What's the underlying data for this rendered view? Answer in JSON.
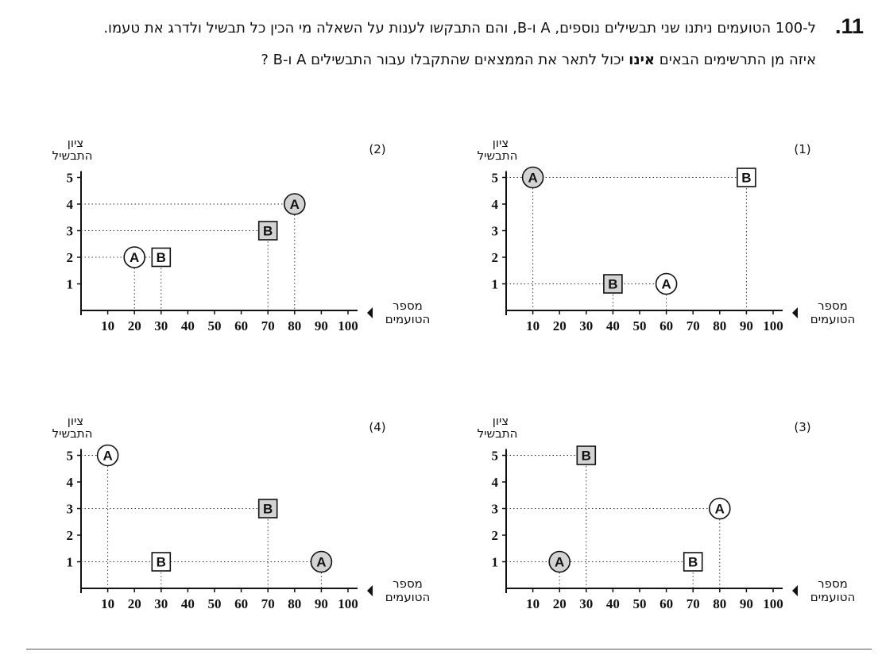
{
  "question": {
    "number": ".11",
    "line1": "ל-100 הטועמים ניתנו שני תבשילים נוספים, A ו-B, והם התבקשו לענות על השאלה מי הכין כל תבשיל ולדרג את טעמו.",
    "line2_before": "איזה מן התרשימים הבאים ",
    "line2_bold": "אינו",
    "line2_after": " יכול לתאר את הממצאים שהתקבלו עבור התבשילים A ו-B ?"
  },
  "axis_text": {
    "y_label_line1": "ציון",
    "y_label_line2": "התבשיל",
    "x_label_line1": "מספר",
    "x_label_line2": "הטועמים"
  },
  "colors": {
    "filled": "#d3d3d3",
    "empty": "#ffffff",
    "stroke": "#111111"
  },
  "chart_data": [
    {
      "type": "scatter",
      "label": "(1)",
      "x_ticks": [
        10,
        20,
        30,
        40,
        50,
        60,
        70,
        80,
        90,
        100
      ],
      "y_ticks": [
        1,
        2,
        3,
        4,
        5
      ],
      "xlim": [
        0,
        100
      ],
      "ylim": [
        0,
        5
      ],
      "points": [
        {
          "name": "A",
          "shape": "circle",
          "fill": "filled",
          "x": 10,
          "y": 5
        },
        {
          "name": "B",
          "shape": "square",
          "fill": "empty",
          "x": 90,
          "y": 5
        },
        {
          "name": "B",
          "shape": "square",
          "fill": "filled",
          "x": 40,
          "y": 1
        },
        {
          "name": "A",
          "shape": "circle",
          "fill": "empty",
          "x": 60,
          "y": 1
        }
      ]
    },
    {
      "type": "scatter",
      "label": "(2)",
      "x_ticks": [
        10,
        20,
        30,
        40,
        50,
        60,
        70,
        80,
        90,
        100
      ],
      "y_ticks": [
        1,
        2,
        3,
        4,
        5
      ],
      "xlim": [
        0,
        100
      ],
      "ylim": [
        0,
        5
      ],
      "points": [
        {
          "name": "A",
          "shape": "circle",
          "fill": "filled",
          "x": 80,
          "y": 4
        },
        {
          "name": "B",
          "shape": "square",
          "fill": "filled",
          "x": 70,
          "y": 3
        },
        {
          "name": "A",
          "shape": "circle",
          "fill": "empty",
          "x": 20,
          "y": 2
        },
        {
          "name": "B",
          "shape": "square",
          "fill": "empty",
          "x": 30,
          "y": 2
        }
      ]
    },
    {
      "type": "scatter",
      "label": "(3)",
      "x_ticks": [
        10,
        20,
        30,
        40,
        50,
        60,
        70,
        80,
        90,
        100
      ],
      "y_ticks": [
        1,
        2,
        3,
        4,
        5
      ],
      "xlim": [
        0,
        100
      ],
      "ylim": [
        0,
        5
      ],
      "points": [
        {
          "name": "B",
          "shape": "square",
          "fill": "filled",
          "x": 30,
          "y": 5
        },
        {
          "name": "A",
          "shape": "circle",
          "fill": "empty",
          "x": 80,
          "y": 3
        },
        {
          "name": "A",
          "shape": "circle",
          "fill": "filled",
          "x": 20,
          "y": 1
        },
        {
          "name": "B",
          "shape": "square",
          "fill": "empty",
          "x": 70,
          "y": 1
        }
      ]
    },
    {
      "type": "scatter",
      "label": "(4)",
      "x_ticks": [
        10,
        20,
        30,
        40,
        50,
        60,
        70,
        80,
        90,
        100
      ],
      "y_ticks": [
        1,
        2,
        3,
        4,
        5
      ],
      "xlim": [
        0,
        100
      ],
      "ylim": [
        0,
        5
      ],
      "points": [
        {
          "name": "A",
          "shape": "circle",
          "fill": "empty",
          "x": 10,
          "y": 5
        },
        {
          "name": "B",
          "shape": "square",
          "fill": "filled",
          "x": 70,
          "y": 3
        },
        {
          "name": "B",
          "shape": "square",
          "fill": "empty",
          "x": 30,
          "y": 1
        },
        {
          "name": "A",
          "shape": "circle",
          "fill": "filled",
          "x": 90,
          "y": 1
        }
      ]
    }
  ]
}
